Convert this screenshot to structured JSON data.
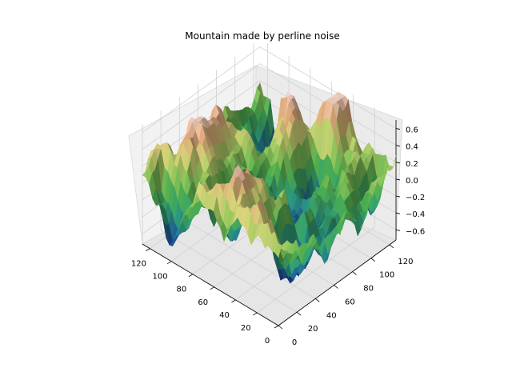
{
  "chart_data": {
    "type": "surface3d",
    "title": "Mountain made by perline noise",
    "x_ticks": [
      0,
      20,
      40,
      60,
      80,
      100,
      120
    ],
    "y_ticks": [
      0,
      20,
      40,
      60,
      80,
      100,
      120
    ],
    "z_ticks": [
      -0.6,
      -0.4,
      -0.2,
      0.0,
      0.2,
      0.4,
      0.6
    ],
    "z_tick_labels": [
      "−0.6",
      "−0.4",
      "−0.2",
      "0.0",
      "0.2",
      "0.4",
      "0.6"
    ],
    "x_range": [
      0,
      127
    ],
    "y_range": [
      0,
      127
    ],
    "z_range": [
      -0.72,
      0.7
    ],
    "grid": true,
    "colormap": "gist_earth",
    "colors": {
      "pane_left": "#f2f2f2",
      "pane_right": "#ebebeb",
      "pane_floor": "#e6e6e6",
      "grid": "#d0d0d0",
      "axis": "#000000"
    }
  }
}
